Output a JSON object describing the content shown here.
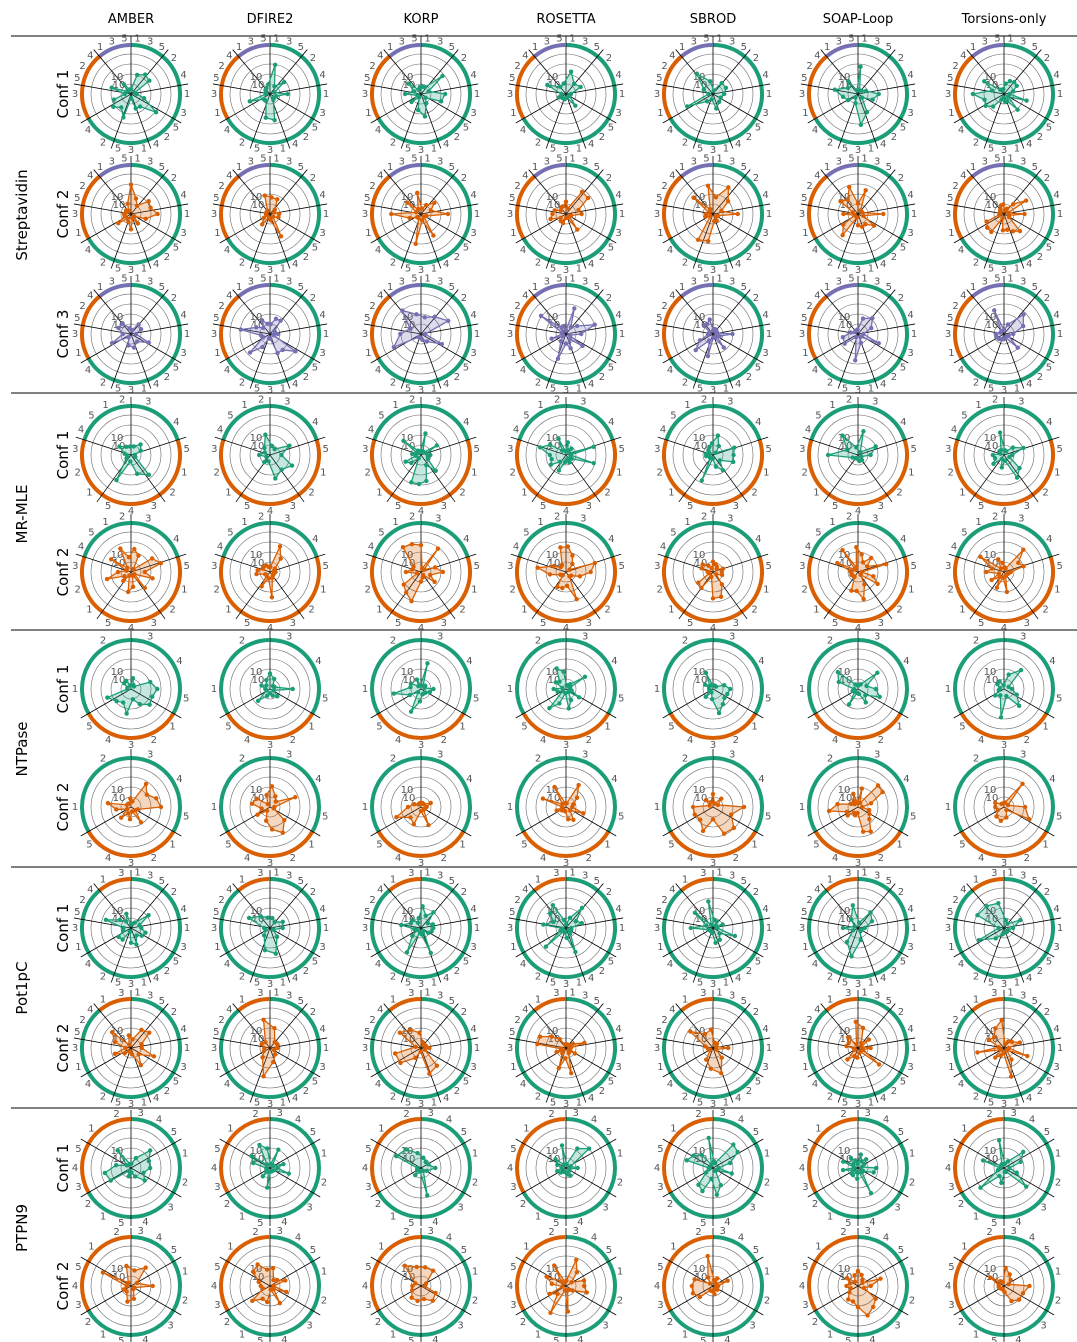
{
  "colors": {
    "green": "#1b9e77",
    "orange": "#d95f02",
    "purple": "#7570b3"
  },
  "chart_data": {
    "type": "radar",
    "methods": [
      "AMBER",
      "DFIRE2",
      "KORP",
      "ROSETTA",
      "SBROD",
      "SOAP-Loop",
      "Torsions-only"
    ],
    "ring_labels": [
      "10",
      "10"
    ],
    "systems": [
      {
        "name": "Streptavidin",
        "confs": [
          "Conf 1",
          "Conf 2",
          "Conf 3"
        ],
        "sectors": [
          {
            "color": "green",
            "labels": [
              "1",
              "3",
              "5"
            ]
          },
          {
            "color": "green",
            "labels": [
              "2",
              "4"
            ]
          },
          {
            "color": "green",
            "labels": [
              "1",
              "3"
            ]
          },
          {
            "color": "green",
            "labels": [
              "5",
              "2",
              "4"
            ]
          },
          {
            "color": "green",
            "labels": [
              "1",
              "3",
              "5"
            ]
          },
          {
            "color": "green",
            "labels": [
              "2",
              "4"
            ]
          },
          {
            "color": "orange",
            "labels": [
              "1",
              "3"
            ]
          },
          {
            "color": "orange",
            "labels": [
              "5",
              "2",
              "4"
            ]
          },
          {
            "color": "purple",
            "labels": [
              "1",
              "3",
              "5"
            ]
          }
        ]
      },
      {
        "name": "MR-MLE",
        "confs": [
          "Conf 1",
          "Conf 2"
        ],
        "sectors": [
          {
            "color": "green",
            "labels": [
              "3",
              "4"
            ]
          },
          {
            "color": "orange",
            "labels": [
              "5",
              "1",
              "2"
            ]
          },
          {
            "color": "orange",
            "labels": [
              "3",
              "4",
              "5"
            ]
          },
          {
            "color": "orange",
            "labels": [
              "1",
              "2",
              "3"
            ]
          },
          {
            "color": "green",
            "labels": [
              "4",
              "5",
              "1",
              "2"
            ]
          }
        ]
      },
      {
        "name": "NTPase",
        "confs": [
          "Conf 1",
          "Conf 2"
        ],
        "sectors": [
          {
            "color": "green",
            "labels": [
              "3",
              "4",
              "5"
            ]
          },
          {
            "color": "orange",
            "labels": [
              "1",
              "2",
              "3",
              "4",
              "5"
            ]
          },
          {
            "color": "green",
            "labels": [
              "1",
              "2"
            ]
          }
        ]
      },
      {
        "name": "Pot1pC",
        "confs": [
          "Conf 1",
          "Conf 2"
        ],
        "sectors": [
          {
            "color": "green",
            "labels": [
              "1",
              "3",
              "5"
            ]
          },
          {
            "color": "green",
            "labels": [
              "2",
              "4"
            ]
          },
          {
            "color": "green",
            "labels": [
              "1",
              "3"
            ]
          },
          {
            "color": "green",
            "labels": [
              "5",
              "2",
              "4"
            ]
          },
          {
            "color": "green",
            "labels": [
              "1",
              "3",
              "5"
            ]
          },
          {
            "color": "green",
            "labels": [
              "2",
              "4"
            ]
          },
          {
            "color": "green",
            "labels": [
              "1",
              "3"
            ]
          },
          {
            "color": "green",
            "labels": [
              "5",
              "2",
              "4"
            ]
          },
          {
            "color": "orange",
            "labels": [
              "1",
              "3"
            ]
          }
        ]
      },
      {
        "name": "PTPN9",
        "confs": [
          "Conf 1",
          "Conf 2"
        ],
        "sectors": [
          {
            "color": "green",
            "labels": [
              "3",
              "4",
              "5"
            ]
          },
          {
            "color": "green",
            "labels": [
              "1",
              "2"
            ]
          },
          {
            "color": "green",
            "labels": [
              "3",
              "4"
            ]
          },
          {
            "color": "green",
            "labels": [
              "5",
              "1",
              "2"
            ]
          },
          {
            "color": "orange",
            "labels": [
              "3",
              "4",
              "5"
            ]
          },
          {
            "color": "orange",
            "labels": [
              "1",
              "2"
            ]
          }
        ]
      }
    ]
  }
}
